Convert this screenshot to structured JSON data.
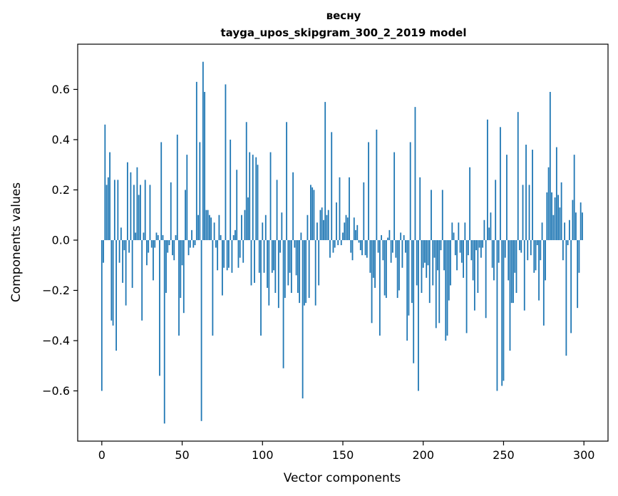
{
  "chart_data": {
    "type": "bar",
    "title": "весну",
    "subtitle": "tayga_upos_skipgram_300_2_2019 model",
    "xlabel": "Vector components",
    "ylabel": "Components values",
    "xlim": [
      -15,
      315
    ],
    "ylim": [
      -0.8,
      0.78
    ],
    "xticks": [
      0,
      50,
      100,
      150,
      200,
      250,
      300
    ],
    "xtick_labels": [
      "0",
      "50",
      "100",
      "150",
      "200",
      "250",
      "300"
    ],
    "yticks": [
      -0.6,
      -0.4,
      -0.2,
      0.0,
      0.2,
      0.4,
      0.6
    ],
    "ytick_labels": [
      "−0.6",
      "−0.4",
      "−0.2",
      "0.0",
      "0.2",
      "0.4",
      "0.6"
    ],
    "bar_color": "#1f77b4",
    "values": [
      -0.6,
      -0.09,
      0.46,
      0.22,
      0.25,
      0.35,
      -0.32,
      -0.34,
      0.24,
      -0.44,
      0.24,
      -0.09,
      0.05,
      -0.17,
      -0.04,
      -0.26,
      0.31,
      -0.05,
      0.27,
      -0.19,
      0.22,
      0.03,
      0.29,
      0.18,
      0.22,
      -0.32,
      0.03,
      0.24,
      -0.1,
      -0.05,
      0.22,
      -0.03,
      -0.16,
      -0.03,
      0.03,
      0.02,
      -0.54,
      0.39,
      0.02,
      -0.73,
      -0.21,
      -0.05,
      -0.02,
      0.23,
      -0.06,
      -0.08,
      0.02,
      0.42,
      -0.38,
      -0.23,
      -0.1,
      -0.29,
      0.2,
      0.34,
      -0.06,
      -0.03,
      0.04,
      -0.03,
      -0.02,
      0.63,
      0.1,
      0.39,
      -0.72,
      0.71,
      0.59,
      0.12,
      0.12,
      0.1,
      0.09,
      -0.38,
      0.07,
      -0.03,
      -0.12,
      0.1,
      0.02,
      -0.22,
      -0.11,
      0.62,
      -0.12,
      -0.11,
      0.4,
      -0.13,
      0.02,
      0.04,
      0.28,
      -0.11,
      -0.07,
      0.1,
      -0.09,
      0.12,
      0.47,
      0.17,
      0.35,
      -0.18,
      0.34,
      -0.17,
      0.33,
      0.3,
      -0.13,
      -0.38,
      0.07,
      -0.13,
      0.1,
      -0.19,
      -0.26,
      0.35,
      -0.13,
      -0.12,
      -0.21,
      0.24,
      -0.27,
      -0.05,
      0.11,
      -0.51,
      -0.23,
      0.47,
      -0.18,
      -0.13,
      -0.21,
      0.27,
      -0.03,
      -0.14,
      -0.21,
      -0.25,
      0.03,
      -0.63,
      -0.26,
      -0.25,
      0.1,
      -0.23,
      0.22,
      0.21,
      0.2,
      -0.26,
      0.07,
      -0.18,
      0.12,
      0.13,
      0.08,
      0.55,
      0.1,
      0.12,
      -0.07,
      0.43,
      -0.05,
      -0.03,
      0.15,
      -0.02,
      0.25,
      -0.02,
      0.03,
      0.07,
      0.1,
      0.09,
      0.25,
      -0.05,
      -0.08,
      0.09,
      0.04,
      0.06,
      -0.01,
      -0.04,
      -0.06,
      0.23,
      -0.06,
      -0.07,
      0.39,
      -0.13,
      -0.33,
      -0.15,
      -0.19,
      0.44,
      -0.05,
      -0.38,
      0.02,
      -0.08,
      -0.22,
      -0.23,
      0.01,
      0.04,
      -0.09,
      -0.05,
      0.35,
      -0.07,
      -0.23,
      -0.2,
      0.03,
      -0.11,
      0.02,
      -0.05,
      -0.4,
      -0.3,
      0.39,
      -0.25,
      -0.49,
      0.53,
      -0.18,
      -0.6,
      0.25,
      -0.21,
      -0.11,
      -0.09,
      -0.15,
      -0.1,
      -0.25,
      0.2,
      -0.18,
      -0.07,
      -0.35,
      -0.12,
      -0.33,
      -0.04,
      0.2,
      -0.12,
      -0.4,
      -0.38,
      -0.24,
      -0.18,
      0.07,
      0.03,
      -0.06,
      -0.12,
      0.07,
      -0.05,
      -0.09,
      -0.15,
      0.07,
      -0.37,
      -0.06,
      0.29,
      -0.08,
      -0.16,
      -0.28,
      -0.04,
      -0.21,
      -0.03,
      -0.07,
      -0.03,
      0.08,
      -0.31,
      0.48,
      0.05,
      0.11,
      -0.11,
      -0.16,
      0.24,
      -0.6,
      -0.09,
      0.45,
      -0.58,
      -0.56,
      -0.07,
      0.34,
      -0.16,
      -0.44,
      -0.25,
      -0.25,
      -0.13,
      -0.21,
      0.51,
      -0.04,
      -0.05,
      0.22,
      -0.28,
      0.38,
      -0.08,
      0.22,
      -0.06,
      0.36,
      -0.13,
      -0.12,
      -0.02,
      -0.24,
      -0.08,
      0.07,
      -0.34,
      -0.16,
      0.19,
      0.29,
      0.59,
      0.19,
      0.1,
      0.17,
      0.37,
      0.18,
      0.13,
      0.23,
      -0.08,
      0.07,
      -0.46,
      -0.02,
      0.08,
      -0.37,
      0.16,
      0.34,
      0.11,
      -0.27,
      -0.13,
      0.15,
      0.11
    ]
  }
}
